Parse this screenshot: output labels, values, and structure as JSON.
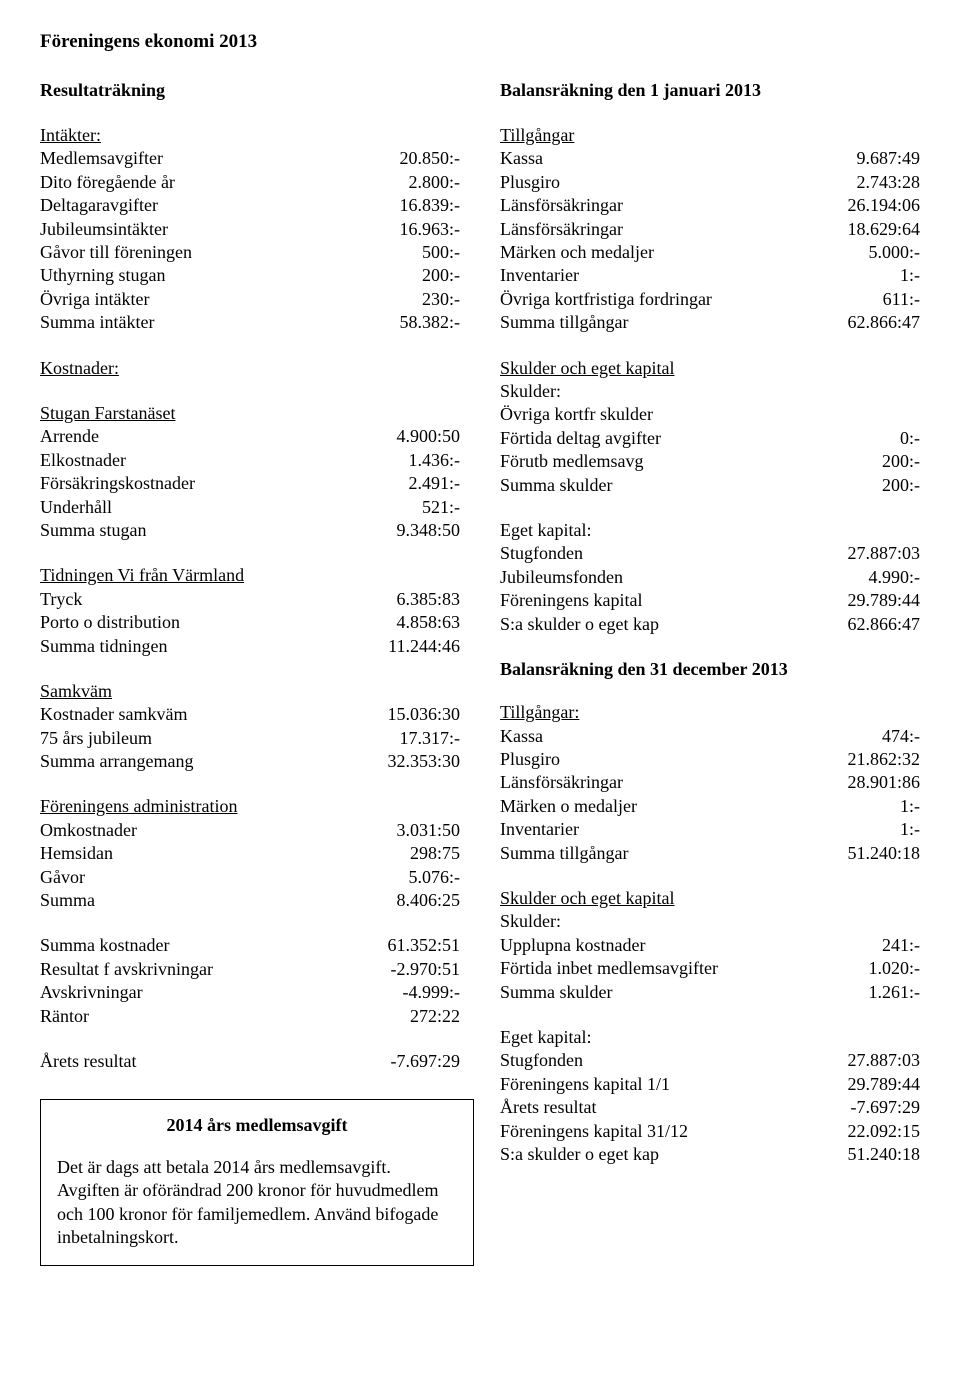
{
  "title": "Föreningens ekonomi 2013",
  "left": {
    "heading": "Resultaträkning",
    "intakter": {
      "header": "Intäkter:",
      "rows": [
        {
          "label": "Medlemsavgifter",
          "value": "20.850:-"
        },
        {
          "label": "Dito föregående år",
          "value": "2.800:-"
        },
        {
          "label": "Deltagaravgifter",
          "value": "16.839:-"
        },
        {
          "label": "Jubileumsintäkter",
          "value": "16.963:-"
        },
        {
          "label": "Gåvor till föreningen",
          "value": "500:-"
        },
        {
          "label": "Uthyrning stugan",
          "value": "200:-"
        },
        {
          "label": "Övriga intäkter",
          "value": "230:-"
        },
        {
          "label": "Summa intäkter",
          "value": "58.382:-"
        }
      ]
    },
    "kostnader_header": "Kostnader:",
    "stugan": {
      "header": "Stugan Farstanäset",
      "rows": [
        {
          "label": "Arrende",
          "value": "4.900:50"
        },
        {
          "label": "Elkostnader",
          "value": "1.436:-"
        },
        {
          "label": "Försäkringskostnader",
          "value": "2.491:-"
        },
        {
          "label": "Underhåll",
          "value": "521:-"
        },
        {
          "label": "Summa stugan",
          "value": "9.348:50"
        }
      ]
    },
    "tidningen": {
      "header": "Tidningen Vi från Värmland",
      "rows": [
        {
          "label": "Tryck",
          "value": "6.385:83"
        },
        {
          "label": "Porto o distribution",
          "value": "4.858:63"
        },
        {
          "label": "Summa tidningen",
          "value": "11.244:46"
        }
      ]
    },
    "samkvam": {
      "header": "Samkväm",
      "rows": [
        {
          "label": "Kostnader samkväm",
          "value": "15.036:30"
        },
        {
          "label": "75 års jubileum",
          "value": "17.317:-"
        },
        {
          "label": "Summa arrangemang",
          "value": "32.353:30"
        }
      ]
    },
    "admin": {
      "header": "Föreningens administration",
      "rows": [
        {
          "label": "Omkostnader",
          "value": "3.031:50"
        },
        {
          "label": "Hemsidan",
          "value": "298:75"
        },
        {
          "label": "Gåvor",
          "value": "5.076:-"
        },
        {
          "label": "Summa",
          "value": "8.406:25"
        }
      ]
    },
    "totals": {
      "rows": [
        {
          "label": "Summa kostnader",
          "value": "61.352:51"
        },
        {
          "label": "Resultat f avskrivningar",
          "value": "-2.970:51"
        },
        {
          "label": "Avskrivningar",
          "value": "-4.999:-"
        },
        {
          "label": "Räntor",
          "value": "272:22"
        }
      ]
    },
    "result": {
      "label": "Årets resultat",
      "value": "-7.697:29"
    },
    "box": {
      "title": "2014 års medlemsavgift",
      "body": "Det är dags att betala 2014 års medlemsavgift. Avgiften är oförändrad 200 kronor för huvudmedlem och 100 kronor för familjemedlem. Använd bifogade inbetalningskort."
    }
  },
  "right": {
    "heading1": "Balansräkning den 1 januari 2013",
    "tillgangar1": {
      "header": "Tillgångar",
      "rows": [
        {
          "label": "Kassa",
          "value": "9.687:49"
        },
        {
          "label": "Plusgiro",
          "value": "2.743:28"
        },
        {
          "label": "Länsförsäkringar",
          "value": "26.194:06"
        },
        {
          "label": "Länsförsäkringar",
          "value": "18.629:64"
        },
        {
          "label": "Märken och medaljer",
          "value": "5.000:-"
        },
        {
          "label": "Inventarier",
          "value": "1:-"
        },
        {
          "label": "Övriga kortfristiga fordringar",
          "value": "611:-"
        },
        {
          "label": "Summa tillgångar",
          "value": "62.866:47"
        }
      ]
    },
    "skeg1_header": "Skulder och eget kapital",
    "skulder1_sub": "Skulder:",
    "skulder1_ovriga": "Övriga kortfr skulder",
    "skulder1": {
      "rows": [
        {
          "label": "Förtida deltag avgifter",
          "value": "0:-"
        },
        {
          "label": "Förutb medlemsavg",
          "value": "200:-"
        },
        {
          "label": "Summa skulder",
          "value": "200:-"
        }
      ]
    },
    "eget1_header": "Eget kapital:",
    "eget1": {
      "rows": [
        {
          "label": "Stugfonden",
          "value": "27.887:03"
        },
        {
          "label": "Jubileumsfonden",
          "value": "4.990:-"
        },
        {
          "label": "Föreningens kapital",
          "value": "29.789:44"
        },
        {
          "label": "S:a skulder o eget kap",
          "value": "62.866:47"
        }
      ]
    },
    "heading2": "Balansräkning den 31 december 2013",
    "tillgangar2": {
      "header": "Tillgångar:",
      "rows": [
        {
          "label": "Kassa",
          "value": "474:-"
        },
        {
          "label": "Plusgiro",
          "value": "21.862:32"
        },
        {
          "label": "Länsförsäkringar",
          "value": "28.901:86"
        },
        {
          "label": "Märken o medaljer",
          "value": "1:-"
        },
        {
          "label": "Inventarier",
          "value": "1:-"
        },
        {
          "label": "Summa tillgångar",
          "value": "51.240:18"
        }
      ]
    },
    "skeg2_header": "Skulder och eget kapital",
    "skulder2_sub": "Skulder:",
    "skulder2": {
      "rows": [
        {
          "label": "Upplupna kostnader",
          "value": "241:-"
        },
        {
          "label": "Förtida inbet medlemsavgifter",
          "value": "1.020:-"
        },
        {
          "label": "Summa skulder",
          "value": "1.261:-"
        }
      ]
    },
    "eget2_header": "Eget kapital:",
    "eget2": {
      "rows": [
        {
          "label": "Stugfonden",
          "value": "27.887:03"
        },
        {
          "label": "Föreningens kapital 1/1",
          "value": "29.789:44"
        },
        {
          "label": "Årets resultat",
          "value": "-7.697:29"
        },
        {
          "label": "Föreningens kapital 31/12",
          "value": "22.092:15"
        },
        {
          "label": "S:a skulder o eget kap",
          "value": "51.240:18"
        }
      ]
    }
  }
}
